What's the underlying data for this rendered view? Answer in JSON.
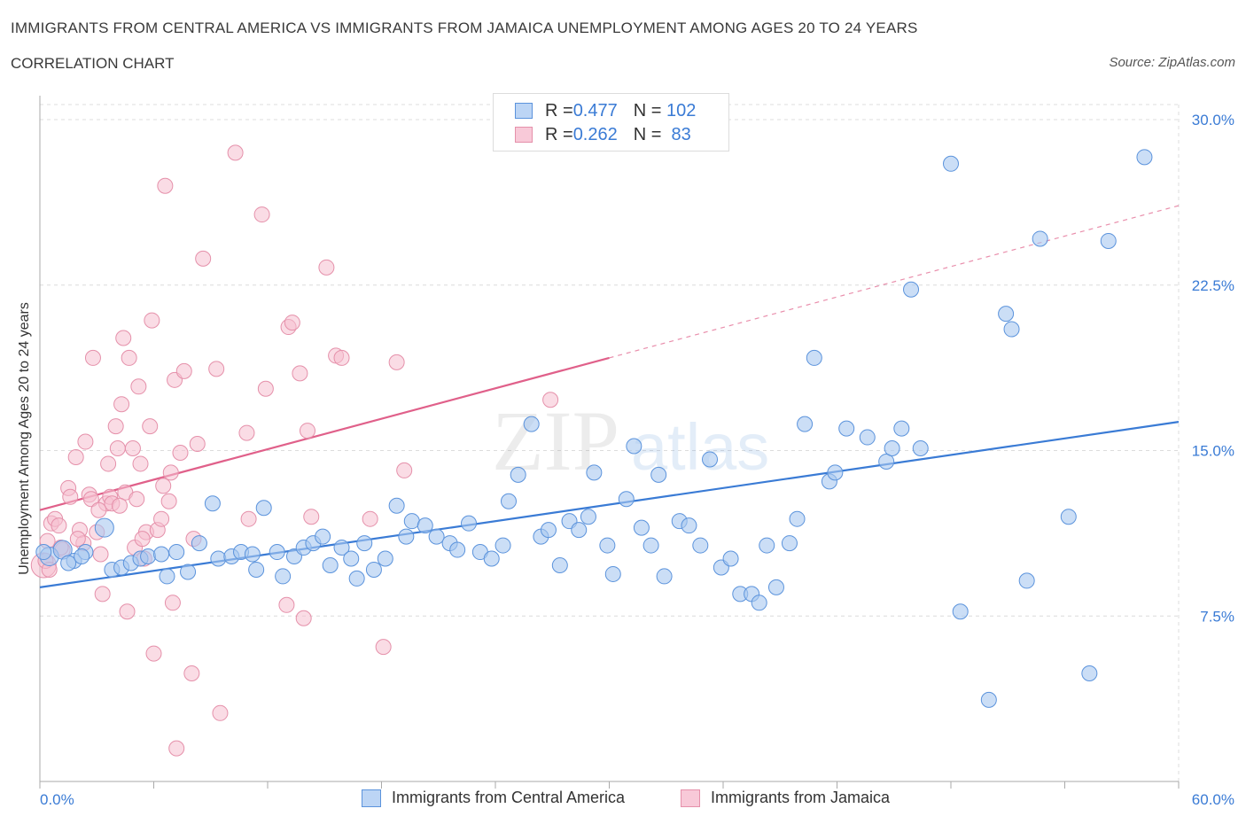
{
  "header": {
    "title": "IMMIGRANTS FROM CENTRAL AMERICA VS IMMIGRANTS FROM JAMAICA UNEMPLOYMENT AMONG AGES 20 TO 24 YEARS",
    "subtitle": "CORRELATION CHART",
    "source": "Source: ZipAtlas.com"
  },
  "legend": {
    "row1": {
      "r_label": "R = ",
      "r_value": "0.477",
      "n_label": "N = ",
      "n_value": "102"
    },
    "row2": {
      "r_label": "R = ",
      "r_value": "0.262",
      "n_label": "N = ",
      "n_value": " 83"
    }
  },
  "watermark": {
    "zip": "ZIP",
    "atlas": "atlas"
  },
  "colors": {
    "blue": "#3a7bd5",
    "blue_fill": "#a8c8f0",
    "blue_stroke": "#5b93dc",
    "pink": "#e0608a",
    "pink_fill": "#f5bfd0",
    "pink_stroke": "#e590aa",
    "grid": "#dcdcdc"
  },
  "chart_data": {
    "type": "scatter",
    "title": "IMMIGRANTS FROM CENTRAL AMERICA VS IMMIGRANTS FROM JAMAICA UNEMPLOYMENT AMONG AGES 20 TO 24 YEARS",
    "ylabel": "Unemployment Among Ages 20 to 24 years",
    "xlabel": "",
    "xlim": [
      0,
      60
    ],
    "ylim": [
      0,
      30
    ],
    "x_tick_labels": [
      "0.0%",
      "60.0%"
    ],
    "y_ticks": [
      7.5,
      15.0,
      22.5,
      30.0
    ],
    "y_tick_labels": [
      "7.5%",
      "15.0%",
      "22.5%",
      "30.0%"
    ],
    "grid": true,
    "legend_position": "top-center",
    "series": [
      {
        "name": "Immigrants from Central America",
        "color": "#3a7bd5",
        "trend": {
          "x0": 0,
          "y0": 8.8,
          "x1": 60,
          "y1": 16.3
        },
        "points": [
          [
            0.5,
            10.2
          ],
          [
            1.2,
            10.5
          ],
          [
            1.8,
            10.0
          ],
          [
            2.4,
            10.4
          ],
          [
            3.4,
            11.5
          ],
          [
            3.8,
            9.6
          ],
          [
            4.3,
            9.7
          ],
          [
            4.8,
            9.9
          ],
          [
            5.3,
            10.1
          ],
          [
            5.7,
            10.2
          ],
          [
            6.4,
            10.3
          ],
          [
            6.7,
            9.3
          ],
          [
            7.2,
            10.4
          ],
          [
            7.8,
            9.5
          ],
          [
            8.4,
            10.8
          ],
          [
            9.1,
            12.6
          ],
          [
            9.4,
            10.1
          ],
          [
            10.1,
            10.2
          ],
          [
            10.6,
            10.4
          ],
          [
            11.2,
            10.3
          ],
          [
            11.4,
            9.6
          ],
          [
            11.8,
            12.4
          ],
          [
            12.5,
            10.4
          ],
          [
            12.8,
            9.3
          ],
          [
            13.4,
            10.2
          ],
          [
            13.9,
            10.6
          ],
          [
            14.4,
            10.8
          ],
          [
            14.9,
            11.1
          ],
          [
            15.3,
            9.8
          ],
          [
            15.9,
            10.6
          ],
          [
            16.4,
            10.1
          ],
          [
            16.7,
            9.2
          ],
          [
            17.1,
            10.8
          ],
          [
            17.6,
            9.6
          ],
          [
            18.2,
            10.1
          ],
          [
            18.8,
            12.5
          ],
          [
            19.3,
            11.1
          ],
          [
            19.6,
            11.8
          ],
          [
            20.3,
            11.6
          ],
          [
            20.9,
            11.1
          ],
          [
            21.6,
            10.8
          ],
          [
            22.0,
            10.5
          ],
          [
            22.6,
            11.7
          ],
          [
            23.2,
            10.4
          ],
          [
            23.8,
            10.1
          ],
          [
            24.4,
            10.7
          ],
          [
            24.7,
            12.7
          ],
          [
            25.2,
            13.9
          ],
          [
            25.9,
            16.2
          ],
          [
            26.4,
            11.1
          ],
          [
            26.8,
            11.4
          ],
          [
            27.4,
            9.8
          ],
          [
            27.9,
            11.8
          ],
          [
            28.4,
            11.4
          ],
          [
            28.9,
            12.0
          ],
          [
            29.2,
            14.0
          ],
          [
            29.9,
            10.7
          ],
          [
            30.2,
            9.4
          ],
          [
            30.9,
            12.8
          ],
          [
            31.3,
            15.2
          ],
          [
            31.7,
            11.5
          ],
          [
            32.2,
            10.7
          ],
          [
            32.6,
            13.9
          ],
          [
            32.9,
            9.3
          ],
          [
            33.7,
            11.8
          ],
          [
            34.2,
            11.6
          ],
          [
            34.8,
            10.7
          ],
          [
            35.3,
            14.6
          ],
          [
            35.9,
            9.7
          ],
          [
            36.4,
            10.1
          ],
          [
            36.9,
            8.5
          ],
          [
            37.5,
            8.5
          ],
          [
            37.9,
            8.1
          ],
          [
            38.3,
            10.7
          ],
          [
            38.8,
            8.8
          ],
          [
            39.5,
            10.8
          ],
          [
            39.9,
            11.9
          ],
          [
            40.3,
            16.2
          ],
          [
            40.8,
            19.2
          ],
          [
            41.6,
            13.6
          ],
          [
            41.9,
            14.0
          ],
          [
            42.5,
            16.0
          ],
          [
            43.6,
            15.6
          ],
          [
            44.6,
            14.5
          ],
          [
            44.9,
            15.1
          ],
          [
            45.4,
            16.0
          ],
          [
            45.9,
            22.3
          ],
          [
            46.4,
            15.1
          ],
          [
            48.0,
            28.0
          ],
          [
            48.5,
            7.7
          ],
          [
            50.0,
            3.7
          ],
          [
            50.9,
            21.2
          ],
          [
            51.2,
            20.5
          ],
          [
            52.0,
            9.1
          ],
          [
            52.7,
            24.6
          ],
          [
            54.2,
            12.0
          ],
          [
            55.3,
            4.9
          ],
          [
            56.3,
            24.5
          ],
          [
            58.2,
            28.3
          ],
          [
            0.2,
            10.4
          ],
          [
            1.5,
            9.9
          ],
          [
            2.2,
            10.2
          ]
        ]
      },
      {
        "name": "Immigrants from Jamaica",
        "color": "#e0608a",
        "trend": {
          "x0": 0,
          "y0": 12.3,
          "x1": 30,
          "y1": 19.2,
          "x2": 60,
          "y2": 26.1
        },
        "points": [
          [
            0.2,
            9.8
          ],
          [
            0.4,
            10.9
          ],
          [
            0.6,
            11.7
          ],
          [
            0.8,
            11.9
          ],
          [
            1.0,
            11.6
          ],
          [
            1.2,
            10.5
          ],
          [
            1.5,
            13.3
          ],
          [
            1.6,
            12.9
          ],
          [
            1.9,
            14.7
          ],
          [
            2.1,
            11.4
          ],
          [
            2.3,
            10.8
          ],
          [
            2.4,
            15.4
          ],
          [
            2.6,
            13.0
          ],
          [
            2.7,
            12.8
          ],
          [
            2.8,
            19.2
          ],
          [
            3.0,
            11.3
          ],
          [
            3.2,
            10.3
          ],
          [
            3.3,
            8.5
          ],
          [
            3.5,
            12.6
          ],
          [
            3.6,
            14.4
          ],
          [
            3.7,
            12.9
          ],
          [
            3.8,
            12.6
          ],
          [
            4.0,
            16.1
          ],
          [
            4.1,
            15.1
          ],
          [
            4.3,
            17.1
          ],
          [
            4.4,
            20.1
          ],
          [
            4.5,
            13.1
          ],
          [
            4.6,
            7.7
          ],
          [
            4.7,
            19.2
          ],
          [
            4.9,
            15.1
          ],
          [
            5.0,
            10.6
          ],
          [
            5.1,
            12.8
          ],
          [
            5.2,
            17.9
          ],
          [
            5.3,
            14.4
          ],
          [
            5.5,
            10.1
          ],
          [
            5.6,
            11.3
          ],
          [
            5.8,
            16.1
          ],
          [
            5.9,
            20.9
          ],
          [
            6.0,
            5.8
          ],
          [
            6.2,
            11.4
          ],
          [
            6.4,
            11.9
          ],
          [
            6.5,
            13.4
          ],
          [
            6.6,
            27.0
          ],
          [
            6.9,
            14.0
          ],
          [
            7.0,
            8.1
          ],
          [
            7.1,
            18.2
          ],
          [
            7.2,
            1.5
          ],
          [
            7.4,
            14.9
          ],
          [
            7.6,
            18.6
          ],
          [
            8.0,
            4.9
          ],
          [
            8.1,
            11.0
          ],
          [
            8.3,
            15.3
          ],
          [
            8.6,
            23.7
          ],
          [
            9.3,
            18.7
          ],
          [
            9.5,
            3.1
          ],
          [
            10.3,
            28.5
          ],
          [
            10.9,
            15.8
          ],
          [
            11.0,
            11.9
          ],
          [
            11.7,
            25.7
          ],
          [
            11.9,
            17.8
          ],
          [
            13.0,
            8.0
          ],
          [
            13.1,
            20.6
          ],
          [
            13.3,
            20.8
          ],
          [
            13.7,
            18.5
          ],
          [
            13.9,
            7.4
          ],
          [
            14.1,
            15.9
          ],
          [
            14.3,
            12.0
          ],
          [
            15.1,
            23.3
          ],
          [
            15.6,
            19.3
          ],
          [
            15.9,
            19.2
          ],
          [
            17.4,
            11.9
          ],
          [
            18.1,
            6.1
          ],
          [
            18.8,
            19.0
          ],
          [
            19.2,
            14.1
          ],
          [
            26.9,
            17.3
          ],
          [
            0.3,
            10.0
          ],
          [
            0.5,
            9.6
          ],
          [
            1.1,
            10.6
          ],
          [
            2.0,
            11.0
          ],
          [
            3.1,
            12.3
          ],
          [
            4.2,
            12.5
          ],
          [
            5.4,
            11.0
          ],
          [
            6.8,
            12.7
          ]
        ]
      }
    ]
  },
  "bottom_legend": {
    "series1": "Immigrants from Central America",
    "series2": "Immigrants from Jamaica"
  }
}
